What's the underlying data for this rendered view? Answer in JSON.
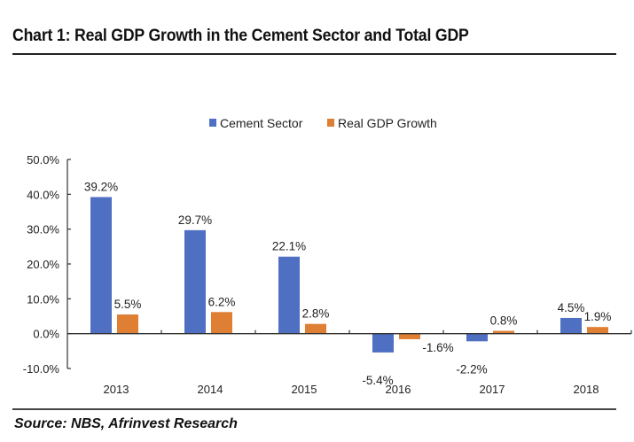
{
  "header": {
    "title": "Chart 1: Real GDP Growth in the Cement Sector and Total GDP"
  },
  "footer": {
    "source": "Source: NBS, Afrinvest Research"
  },
  "chart_data": {
    "type": "bar",
    "title": "Chart 1: Real GDP Growth in the Cement Sector and Total GDP",
    "xlabel": "",
    "ylabel": "",
    "categories": [
      "2013",
      "2014",
      "2015",
      "2016",
      "2017",
      "2018"
    ],
    "series": [
      {
        "name": "Cement Sector",
        "color": "#4f6fc3",
        "values": [
          39.2,
          29.7,
          22.1,
          -5.4,
          -2.2,
          4.5
        ],
        "labels": [
          "39.2%",
          "29.7%",
          "22.1%",
          "-5.4%",
          "-2.2%",
          "4.5%"
        ]
      },
      {
        "name": "Real GDP Growth",
        "color": "#de7f33",
        "values": [
          5.5,
          6.2,
          2.8,
          -1.6,
          0.8,
          1.9
        ],
        "labels": [
          "5.5%",
          "6.2%",
          "2.8%",
          "-1.6%",
          "0.8%",
          "1.9%"
        ]
      }
    ],
    "ylim": [
      -10,
      50
    ],
    "yticks": [
      50,
      40,
      30,
      20,
      10,
      0,
      -10
    ],
    "ytick_labels": [
      "50.0%",
      "40.0%",
      "30.0%",
      "20.0%",
      "10.0%",
      "0.0%",
      "-10.0%"
    ],
    "grid": false,
    "legend": "top-center"
  }
}
